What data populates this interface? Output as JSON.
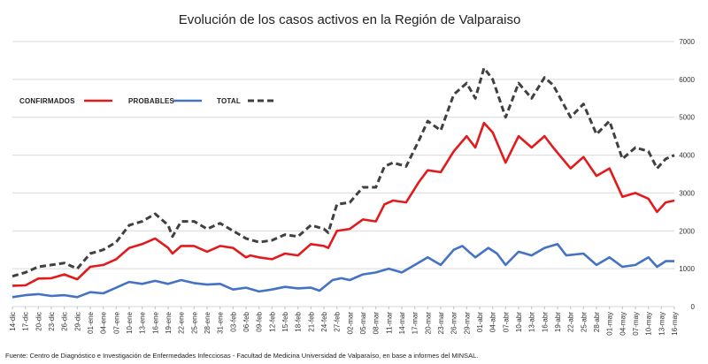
{
  "chart_data": {
    "type": "line",
    "title": "Evolución de los casos activos en la Región de Valparaiso",
    "source": "Fuente: Centro de Diagnóstico e Investigación de Enfermedades Infecciosas - Facultad de Medicina Universidad de Valparaíso, en base a informes del MINSAL.",
    "ylim": [
      0,
      7000
    ],
    "y_ticks": [
      0,
      1000,
      2000,
      3000,
      4000,
      5000,
      6000,
      7000
    ],
    "y_tick_labels": [
      "0",
      "1000",
      "2000",
      "3000",
      "4000",
      "5000",
      "6000",
      "7000"
    ],
    "y_axis_position": "right",
    "grid": true,
    "legend_position": "top-left",
    "x_start": "2020-12-14",
    "x_end": "2021-05-16",
    "x_tick_labels": [
      "14-dic",
      "17-dic",
      "20-dic",
      "23-dic",
      "26-dic",
      "29-dic",
      "01-ene",
      "04-ene",
      "07-ene",
      "10-ene",
      "13-ene",
      "16-ene",
      "19-ene",
      "22-ene",
      "25-ene",
      "28-ene",
      "31-ene",
      "03-feb",
      "06-feb",
      "09-feb",
      "12-feb",
      "15-feb",
      "18-feb",
      "21-feb",
      "24-feb",
      "27-feb",
      "02-mar",
      "05-mar",
      "08-mar",
      "11-mar",
      "14-mar",
      "17-mar",
      "20-mar",
      "23-mar",
      "26-mar",
      "29-mar",
      "01-abr",
      "04-abr",
      "07-abr",
      "10-abr",
      "13-abr",
      "16-abr",
      "19-abr",
      "22-abr",
      "25-abr",
      "28-abr",
      "01-may",
      "04-may",
      "07-may",
      "10-may",
      "13-may",
      "16-may"
    ],
    "series": [
      {
        "name": "CONFIRMADOS",
        "color": "#e31a1c",
        "style": "solid",
        "points": [
          [
            "14-dic",
            550
          ],
          [
            "17-dic",
            560
          ],
          [
            "20-dic",
            740
          ],
          [
            "23-dic",
            750
          ],
          [
            "26-dic",
            850
          ],
          [
            "29-dic",
            720
          ],
          [
            "01-ene",
            1050
          ],
          [
            "04-ene",
            1100
          ],
          [
            "07-ene",
            1250
          ],
          [
            "10-ene",
            1550
          ],
          [
            "13-ene",
            1650
          ],
          [
            "16-ene",
            1800
          ],
          [
            "19-ene",
            1550
          ],
          [
            "20-ene",
            1400
          ],
          [
            "22-ene",
            1600
          ],
          [
            "25-ene",
            1600
          ],
          [
            "28-ene",
            1450
          ],
          [
            "31-ene",
            1600
          ],
          [
            "03-feb",
            1550
          ],
          [
            "06-feb",
            1300
          ],
          [
            "07-feb",
            1350
          ],
          [
            "09-feb",
            1300
          ],
          [
            "12-feb",
            1250
          ],
          [
            "15-feb",
            1400
          ],
          [
            "18-feb",
            1350
          ],
          [
            "21-feb",
            1650
          ],
          [
            "24-feb",
            1600
          ],
          [
            "25-feb",
            1550
          ],
          [
            "27-feb",
            2000
          ],
          [
            "02-mar",
            2050
          ],
          [
            "05-mar",
            2300
          ],
          [
            "08-mar",
            2250
          ],
          [
            "10-mar",
            2700
          ],
          [
            "12-mar",
            2800
          ],
          [
            "15-mar",
            2750
          ],
          [
            "18-mar",
            3300
          ],
          [
            "20-mar",
            3600
          ],
          [
            "23-mar",
            3550
          ],
          [
            "26-mar",
            4100
          ],
          [
            "29-mar",
            4500
          ],
          [
            "31-mar",
            4200
          ],
          [
            "02-abr",
            4850
          ],
          [
            "04-abr",
            4600
          ],
          [
            "07-abr",
            3800
          ],
          [
            "10-abr",
            4500
          ],
          [
            "13-abr",
            4200
          ],
          [
            "16-abr",
            4500
          ],
          [
            "18-abr",
            4200
          ],
          [
            "22-abr",
            3650
          ],
          [
            "25-abr",
            3950
          ],
          [
            "28-abr",
            3450
          ],
          [
            "01-may",
            3650
          ],
          [
            "04-may",
            2900
          ],
          [
            "07-may",
            3000
          ],
          [
            "10-may",
            2850
          ],
          [
            "12-may",
            2500
          ],
          [
            "14-may",
            2750
          ],
          [
            "16-may",
            2800
          ]
        ]
      },
      {
        "name": "PROBABLES",
        "color": "#4472c4",
        "style": "solid",
        "points": [
          [
            "14-dic",
            250
          ],
          [
            "17-dic",
            300
          ],
          [
            "20-dic",
            330
          ],
          [
            "23-dic",
            280
          ],
          [
            "26-dic",
            300
          ],
          [
            "29-dic",
            250
          ],
          [
            "01-ene",
            380
          ],
          [
            "04-ene",
            350
          ],
          [
            "07-ene",
            500
          ],
          [
            "10-ene",
            650
          ],
          [
            "13-ene",
            600
          ],
          [
            "16-ene",
            680
          ],
          [
            "19-ene",
            600
          ],
          [
            "22-ene",
            700
          ],
          [
            "25-ene",
            620
          ],
          [
            "28-ene",
            580
          ],
          [
            "31-ene",
            600
          ],
          [
            "03-feb",
            450
          ],
          [
            "06-feb",
            500
          ],
          [
            "09-feb",
            400
          ],
          [
            "12-feb",
            450
          ],
          [
            "15-feb",
            520
          ],
          [
            "18-feb",
            480
          ],
          [
            "21-feb",
            500
          ],
          [
            "23-feb",
            420
          ],
          [
            "26-feb",
            700
          ],
          [
            "28-feb",
            750
          ],
          [
            "02-mar",
            700
          ],
          [
            "05-mar",
            850
          ],
          [
            "08-mar",
            900
          ],
          [
            "11-mar",
            1000
          ],
          [
            "14-mar",
            900
          ],
          [
            "17-mar",
            1100
          ],
          [
            "20-mar",
            1300
          ],
          [
            "23-mar",
            1100
          ],
          [
            "26-mar",
            1500
          ],
          [
            "28-mar",
            1600
          ],
          [
            "31-mar",
            1300
          ],
          [
            "03-abr",
            1550
          ],
          [
            "05-abr",
            1400
          ],
          [
            "07-abr",
            1100
          ],
          [
            "10-abr",
            1450
          ],
          [
            "13-abr",
            1350
          ],
          [
            "16-abr",
            1550
          ],
          [
            "19-abr",
            1650
          ],
          [
            "21-abr",
            1350
          ],
          [
            "25-abr",
            1400
          ],
          [
            "28-abr",
            1100
          ],
          [
            "01-may",
            1300
          ],
          [
            "04-may",
            1050
          ],
          [
            "07-may",
            1100
          ],
          [
            "10-may",
            1300
          ],
          [
            "12-may",
            1050
          ],
          [
            "14-may",
            1200
          ],
          [
            "16-may",
            1200
          ]
        ]
      },
      {
        "name": "TOTAL",
        "color": "#404040",
        "style": "dashed",
        "points": [
          [
            "14-dic",
            800
          ],
          [
            "17-dic",
            900
          ],
          [
            "20-dic",
            1050
          ],
          [
            "23-dic",
            1100
          ],
          [
            "26-dic",
            1150
          ],
          [
            "29-dic",
            1000
          ],
          [
            "01-ene",
            1400
          ],
          [
            "04-ene",
            1500
          ],
          [
            "07-ene",
            1700
          ],
          [
            "10-ene",
            2150
          ],
          [
            "13-ene",
            2250
          ],
          [
            "16-ene",
            2450
          ],
          [
            "19-ene",
            2150
          ],
          [
            "20-ene",
            1850
          ],
          [
            "22-ene",
            2250
          ],
          [
            "25-ene",
            2250
          ],
          [
            "28-ene",
            2050
          ],
          [
            "31-ene",
            2200
          ],
          [
            "03-feb",
            2000
          ],
          [
            "06-feb",
            1800
          ],
          [
            "09-feb",
            1700
          ],
          [
            "12-feb",
            1750
          ],
          [
            "15-feb",
            1900
          ],
          [
            "18-feb",
            1850
          ],
          [
            "21-feb",
            2150
          ],
          [
            "24-feb",
            2050
          ],
          [
            "25-feb",
            1950
          ],
          [
            "27-feb",
            2700
          ],
          [
            "02-mar",
            2750
          ],
          [
            "05-mar",
            3150
          ],
          [
            "08-mar",
            3150
          ],
          [
            "10-mar",
            3700
          ],
          [
            "12-mar",
            3800
          ],
          [
            "15-mar",
            3700
          ],
          [
            "18-mar",
            4400
          ],
          [
            "20-mar",
            4900
          ],
          [
            "23-mar",
            4650
          ],
          [
            "26-mar",
            5600
          ],
          [
            "29-mar",
            5900
          ],
          [
            "31-mar",
            5500
          ],
          [
            "02-abr",
            6300
          ],
          [
            "04-abr",
            6000
          ],
          [
            "07-abr",
            5000
          ],
          [
            "10-abr",
            5900
          ],
          [
            "13-abr",
            5500
          ],
          [
            "16-abr",
            6050
          ],
          [
            "18-abr",
            5850
          ],
          [
            "22-abr",
            5000
          ],
          [
            "25-abr",
            5350
          ],
          [
            "28-abr",
            4550
          ],
          [
            "01-may",
            4900
          ],
          [
            "04-may",
            3900
          ],
          [
            "07-may",
            4200
          ],
          [
            "10-may",
            4100
          ],
          [
            "12-may",
            3650
          ],
          [
            "14-may",
            3900
          ],
          [
            "16-may",
            4000
          ]
        ]
      }
    ]
  }
}
